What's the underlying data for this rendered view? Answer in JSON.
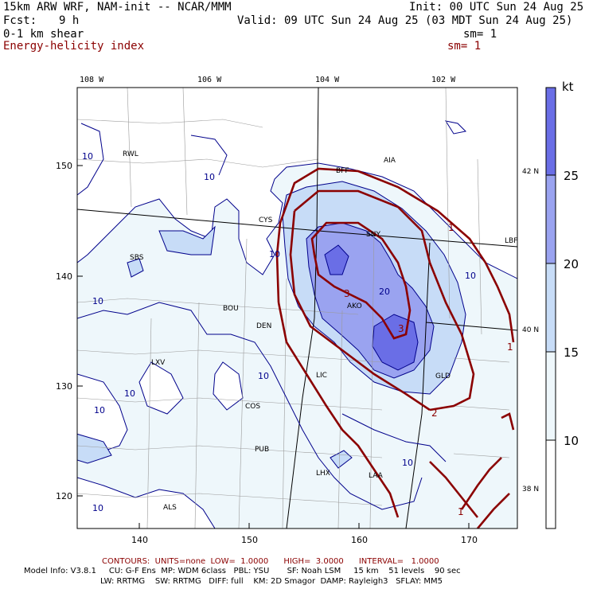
{
  "header": {
    "model": "15km ARW WRF, NAM-init -- NCAR/MMM",
    "init": "Init: 00 UTC Sun 24 Aug 25",
    "fcst_label": "Fcst:",
    "fcst_value": "9 h",
    "valid": "Valid: 09 UTC Sun 24 Aug 25 (03 MDT Sun 24 Aug 25)",
    "field1": "0-1 km shear",
    "field1_sm": "sm= 1",
    "field2": "Energy-helicity index",
    "field2_sm": "sm= 1"
  },
  "map": {
    "lon_labels": [
      "108 W",
      "106 W",
      "104 W",
      "102 W"
    ],
    "lat_labels": [
      "42 N",
      "40 N",
      "38 N"
    ],
    "y_ticks": [
      "150",
      "140",
      "130",
      "120"
    ],
    "x_ticks": [
      "140",
      "150",
      "160",
      "170"
    ],
    "cities": [
      "RWL",
      "AIA",
      "BFF",
      "CYS",
      "SNY",
      "LBF",
      "SBS",
      "BOU",
      "DEN",
      "AKO",
      "LXV",
      "LIC",
      "GLD",
      "COS",
      "PUB",
      "LHX",
      "LAA",
      "ALS"
    ],
    "shear_contour_labels": [
      "10",
      "10",
      "10",
      "10",
      "10",
      "10",
      "10",
      "10",
      "10",
      "10",
      "20"
    ],
    "ehi_contour_labels": [
      "1",
      "1",
      "1",
      "2",
      "3",
      "3"
    ],
    "colors": {
      "shear_contour": "#00008b",
      "ehi_contour": "#8b0000",
      "fill_10": "#eef7fb",
      "fill_15": "#c7dcf7",
      "fill_20": "#9aa3f0",
      "fill_25": "#6a6ee6"
    }
  },
  "colorbar": {
    "unit": "kt",
    "labels": [
      "25",
      "20",
      "15",
      "10"
    ]
  },
  "footer": {
    "contours": "CONTOURS:  UNITS=none  LOW=  1.0000      HIGH=  3.0000      INTERVAL=   1.0000",
    "line1": "Model Info: V3.8.1     CU: G-F Ens  MP: WDM 6class   PBL: YSU       SF: Noah LSM     15 km    51 levels    90 sec",
    "line2": "LW: RRTMG    SW: RRTMG   DIFF: full    KM: 2D Smagor  DAMP: Rayleigh3   SFLAY: MM5"
  }
}
